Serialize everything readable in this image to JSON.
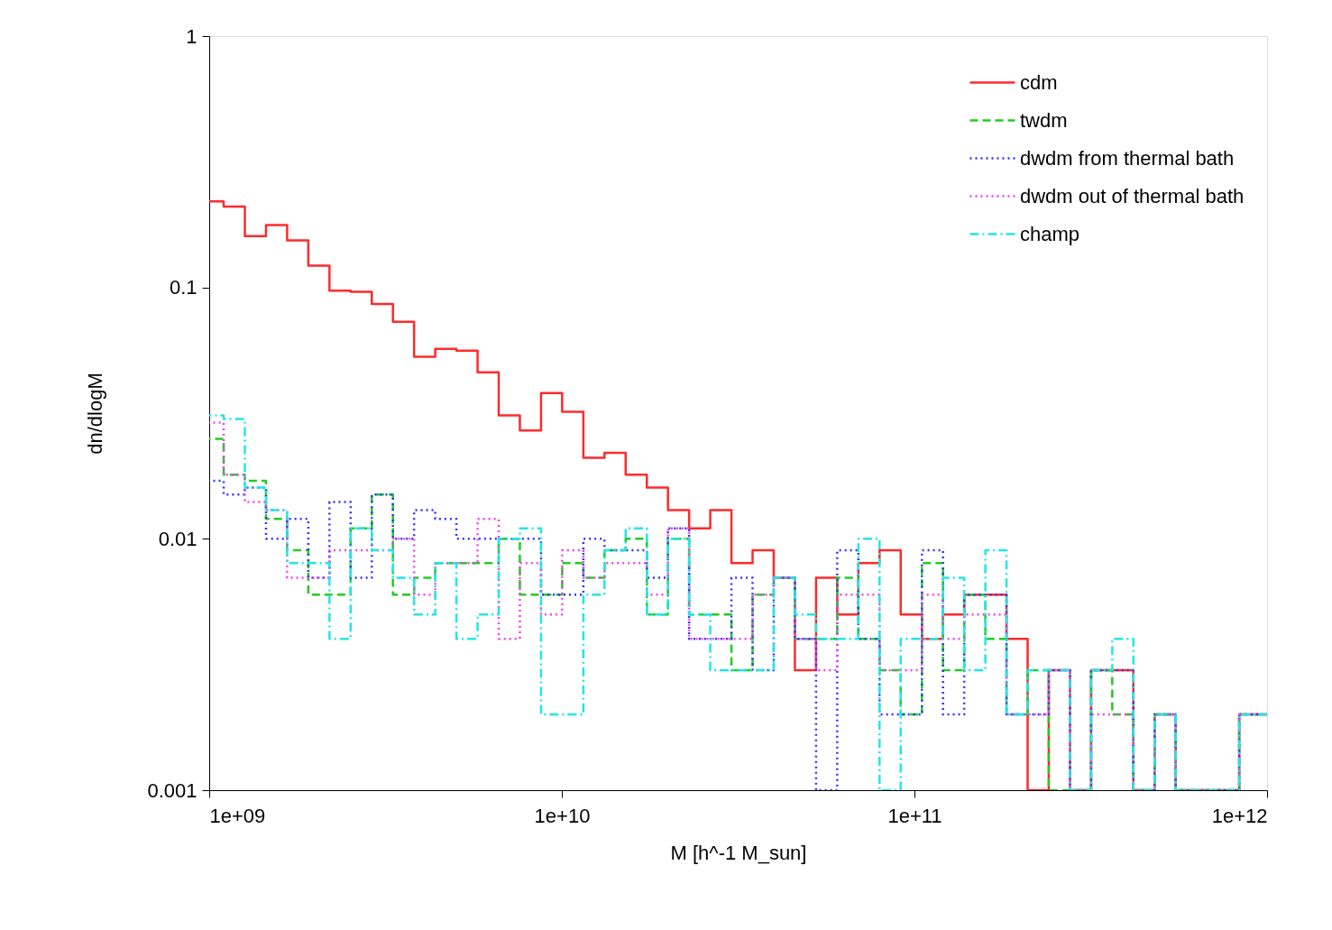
{
  "chart_data": {
    "type": "histogram",
    "xlabel": "M [h^-1 M_sun]",
    "ylabel": "dn/dlogM",
    "log": "xy",
    "xlim": [
      1000000000.0,
      1000000000000.0
    ],
    "ylim": [
      0.001,
      1
    ],
    "xticks": [
      {
        "value": 1000000000.0,
        "label": "1e+09"
      },
      {
        "value": 10000000000.0,
        "label": "1e+10"
      },
      {
        "value": 100000000000.0,
        "label": "1e+11"
      },
      {
        "value": 1000000000000.0,
        "label": "1e+12"
      }
    ],
    "yticks": [
      0.001,
      0.01,
      0.1,
      1
    ],
    "grid": false,
    "legend": "top right",
    "bins": [
      957000000.0,
      1099000000.0,
      1262000000.0,
      1449000000.0,
      1663000000.0,
      1910000000.0,
      2193000000.0,
      2518000000.0,
      2891000000.0,
      3319000000.0,
      3811000000.0,
      4375000000.0,
      5023000000.0,
      5768000000.0,
      6622000000.0,
      7603000000.0,
      8730000000.0,
      10020000000.0,
      11510000000.0,
      13210000000.0,
      15170000000.0,
      17420000000.0,
      20000000000.0,
      22960000000.0,
      26360000000.0,
      30270000000.0,
      34750000000.0,
      39900000000.0,
      45810000000.0,
      52600000000.0,
      60390000000.0,
      69340000000.0,
      79620000000.0,
      91410000000.0,
      105000000000.0,
      120500000000.0,
      138400000000.0,
      158900000000.0,
      182400000000.0,
      209400000000.0,
      240400000000.0,
      276100000000.0,
      317000000000.0,
      363900000000.0,
      417800000000.0,
      479700000000.0,
      550800000000.0,
      632400000000.0,
      726100000000.0,
      833700000000.0,
      957200000000.0,
      1099000000000.0
    ],
    "series": [
      {
        "name": "cdm",
        "color": "#ff2a2a",
        "line_style": "solid",
        "values": [
          0.22,
          0.21,
          0.16,
          0.177,
          0.154,
          0.122,
          0.097,
          0.096,
          0.086,
          0.073,
          0.053,
          0.057,
          0.056,
          0.046,
          0.031,
          0.027,
          0.038,
          0.032,
          0.021,
          0.022,
          0.018,
          0.016,
          0.013,
          0.011,
          0.013,
          0.008,
          0.009,
          0.007,
          0.003,
          0.007,
          0.005,
          0.008,
          0.009,
          0.005,
          0.004,
          0.005,
          0.006,
          0.006,
          0.004,
          null,
          0.003,
          null,
          0.003,
          0.003,
          null,
          0.002,
          null,
          null,
          null,
          0.002,
          0.002
        ]
      },
      {
        "name": "twdm",
        "color": "#22cc22",
        "line_style": "dashed",
        "values": [
          0.025,
          0.018,
          0.017,
          0.012,
          0.009,
          0.006,
          0.006,
          0.011,
          0.015,
          0.006,
          0.007,
          0.008,
          0.008,
          0.008,
          0.01,
          0.006,
          0.006,
          0.008,
          0.007,
          0.009,
          0.01,
          0.005,
          0.01,
          0.005,
          0.005,
          0.003,
          0.006,
          0.007,
          0.004,
          0.004,
          0.007,
          0.004,
          0.003,
          0.002,
          0.008,
          0.003,
          0.006,
          0.004,
          0.002,
          0.003,
          null,
          null,
          0.003,
          0.002,
          null,
          0.002,
          null,
          null,
          null,
          0.002,
          0.002
        ]
      },
      {
        "name": "dwdm from thermal bath",
        "color": "#3333ff",
        "line_style": "dotted",
        "values": [
          0.017,
          0.015,
          0.016,
          0.01,
          0.012,
          0.007,
          0.014,
          0.007,
          0.015,
          0.01,
          0.013,
          0.012,
          0.01,
          0.01,
          0.01,
          0.01,
          0.006,
          0.006,
          0.01,
          0.009,
          0.009,
          0.007,
          0.011,
          0.004,
          0.004,
          0.007,
          0.003,
          0.007,
          0.004,
          null,
          0.009,
          0.004,
          0.002,
          0.002,
          0.009,
          0.002,
          0.006,
          0.006,
          0.002,
          0.002,
          0.003,
          null,
          0.003,
          0.003,
          null,
          0.002,
          null,
          null,
          null,
          0.002,
          0.002
        ]
      },
      {
        "name": "dwdm out of thermal bath",
        "color": "#ee44ee",
        "line_style": "dotted",
        "values": [
          0.029,
          0.018,
          0.014,
          0.013,
          0.007,
          0.007,
          0.009,
          0.009,
          0.009,
          0.01,
          0.006,
          0.008,
          0.008,
          0.012,
          0.004,
          0.008,
          0.005,
          0.009,
          0.007,
          0.008,
          0.008,
          0.006,
          0.011,
          0.004,
          0.004,
          0.004,
          0.006,
          0.007,
          0.004,
          0.003,
          0.006,
          0.006,
          0.003,
          0.003,
          0.006,
          0.004,
          0.005,
          0.005,
          0.002,
          0.002,
          0.003,
          null,
          0.002,
          0.002,
          null,
          0.002,
          null,
          null,
          null,
          0.002,
          0.002
        ]
      },
      {
        "name": "champ",
        "color": "#22e6e6",
        "line_style": "dashdot",
        "values": [
          0.031,
          0.03,
          0.016,
          0.013,
          0.008,
          0.008,
          0.004,
          0.011,
          0.009,
          0.007,
          0.005,
          0.008,
          0.004,
          0.005,
          0.01,
          0.011,
          0.002,
          0.002,
          0.006,
          0.009,
          0.011,
          0.005,
          0.01,
          0.005,
          0.003,
          0.003,
          0.003,
          0.007,
          0.005,
          0.004,
          0.004,
          0.01,
          null,
          0.004,
          0.004,
          0.007,
          0.003,
          0.009,
          0.002,
          0.003,
          0.003,
          null,
          0.003,
          0.004,
          null,
          0.002,
          null,
          null,
          null,
          0.002,
          0.002
        ]
      }
    ]
  }
}
